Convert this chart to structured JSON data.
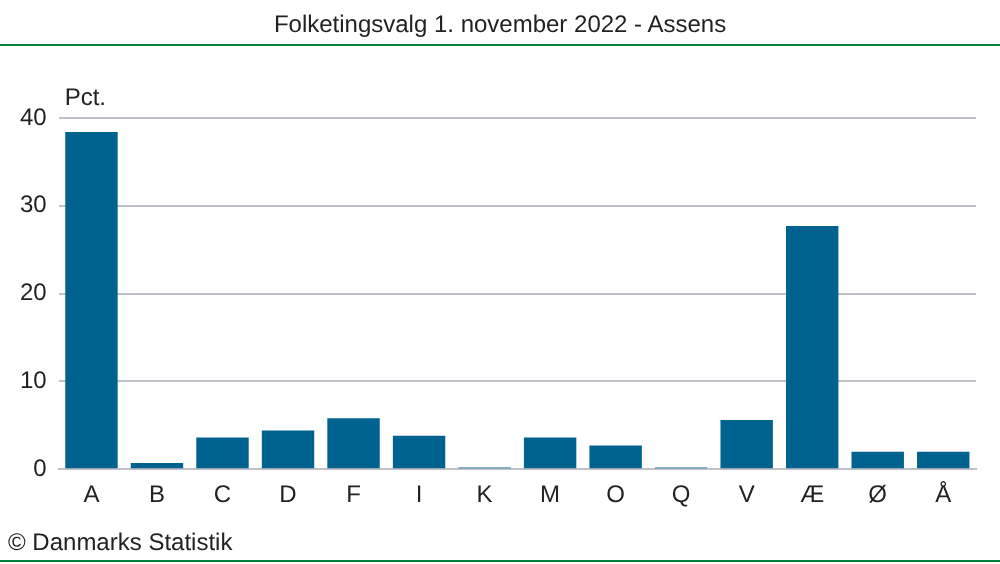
{
  "chart_data": {
    "type": "bar",
    "title": "Folketingsvalg 1. november 2022 - Assens",
    "ylabel": "Pct.",
    "categories": [
      "A",
      "B",
      "C",
      "D",
      "F",
      "I",
      "K",
      "M",
      "O",
      "Q",
      "V",
      "Æ",
      "Ø",
      "Å"
    ],
    "values": [
      38.4,
      0.7,
      3.6,
      4.4,
      5.8,
      3.8,
      0.2,
      3.6,
      2.7,
      0.2,
      5.6,
      27.7,
      2.0,
      2.0
    ],
    "color": "#00628f",
    "ylim": [
      0,
      40
    ],
    "yticks": [
      0,
      10,
      20,
      30,
      40
    ],
    "grid": "y",
    "annotations": [
      "© Danmarks Statistik"
    ]
  }
}
